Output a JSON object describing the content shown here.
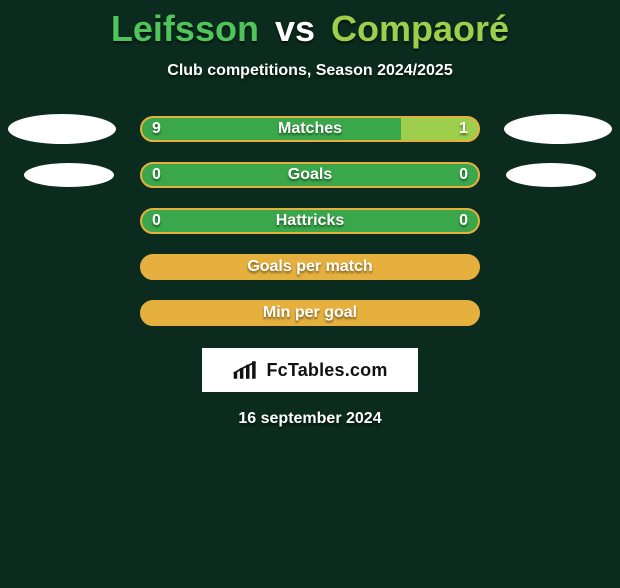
{
  "colors": {
    "background": "#0a2b1e",
    "player1": "#4fc45a",
    "player2": "#9dcf4c",
    "bar_border": "#e6b03e",
    "bar_empty": "#e6b03e",
    "bar_left_fill": "#3aa84a",
    "bar_right_fill": "#9dcf4c",
    "white": "#ffffff",
    "logo_text": "#111111"
  },
  "title": {
    "player1": "Leifsson",
    "vs": "vs",
    "player2": "Compaoré",
    "fontsize": 36
  },
  "subtitle": "Club competitions, Season 2024/2025",
  "stats": [
    {
      "label": "Matches",
      "left_value": "9",
      "right_value": "1",
      "left_pct": 77,
      "right_pct": 23,
      "oval_left": "large",
      "oval_right": "large"
    },
    {
      "label": "Goals",
      "left_value": "0",
      "right_value": "0",
      "left_pct": 100,
      "right_pct": 0,
      "oval_left": "small",
      "oval_right": "small"
    },
    {
      "label": "Hattricks",
      "left_value": "0",
      "right_value": "0",
      "left_pct": 100,
      "right_pct": 0,
      "oval_left": "none",
      "oval_right": "none"
    },
    {
      "label": "Goals per match",
      "left_value": "",
      "right_value": "",
      "left_pct": 0,
      "right_pct": 0,
      "oval_left": "none",
      "oval_right": "none"
    },
    {
      "label": "Min per goal",
      "left_value": "",
      "right_value": "",
      "left_pct": 0,
      "right_pct": 0,
      "oval_left": "none",
      "oval_right": "none"
    }
  ],
  "logo": {
    "text": "FcTables.com"
  },
  "date": "16 september 2024"
}
